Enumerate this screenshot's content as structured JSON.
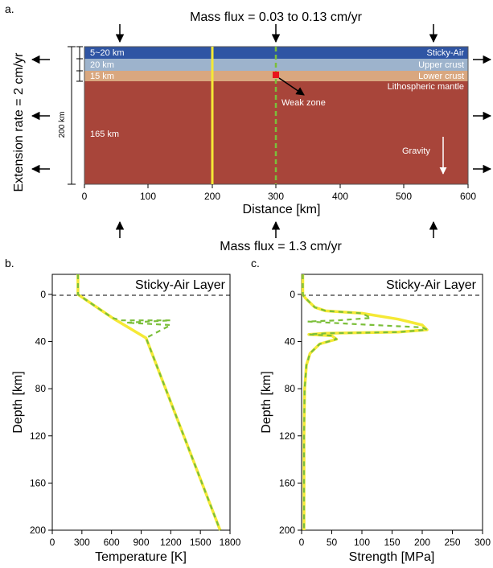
{
  "panel_a": {
    "label": "a.",
    "top_title": "Mass flux = 0.03 to 0.13 cm/yr",
    "bottom_title": "Mass flux = 1.3 cm/yr",
    "side_title": "Extension rate = 2 cm/yr",
    "height_label": "200 km",
    "x_axis_title": "Distance [km]",
    "x_ticks": [
      "0",
      "100",
      "200",
      "300",
      "400",
      "500",
      "600"
    ],
    "layers": [
      {
        "left_label": "5~20 km",
        "right_label": "Sticky-Air",
        "color": "#2f55a4"
      },
      {
        "left_label": "20 km",
        "right_label": "Upper crust",
        "color": "#9db3cc"
      },
      {
        "left_label": "15 km",
        "right_label": "Lower crust",
        "color": "#d9a77f"
      },
      {
        "left_label": "165 km",
        "right_label": "Lithospheric mantle",
        "color": "#a8453a"
      }
    ],
    "weak_zone_label": "Weak zone",
    "gravity_label": "Gravity",
    "profile_positions_km": [
      200,
      300
    ],
    "colors": {
      "solid_profile": "#f5e936",
      "dashed_profile": "#7bbf3a",
      "weak_zone": "#e8141c"
    }
  },
  "panel_b": {
    "label": "b.",
    "annotation": "Sticky-Air Layer",
    "x_axis_title": "Temperature [K]",
    "y_axis_title": "Depth [km]",
    "x_ticks": [
      "0",
      "300",
      "600",
      "900",
      "1200",
      "1500",
      "1800"
    ],
    "y_ticks": [
      "0",
      "40",
      "80",
      "120",
      "160",
      "200"
    ]
  },
  "panel_c": {
    "label": "c.",
    "annotation": "Sticky-Air Layer",
    "x_axis_title": "Strength [MPa]",
    "y_axis_title": "Depth [km]",
    "x_ticks": [
      "0",
      "50",
      "100",
      "150",
      "200",
      "250",
      "300"
    ],
    "y_ticks": [
      "0",
      "40",
      "80",
      "120",
      "160",
      "200"
    ]
  },
  "chart_data": [
    {
      "type": "line",
      "xlabel": "Temperature [K]",
      "ylabel": "Depth [km]",
      "xlim": [
        0,
        1800
      ],
      "ylim": [
        200,
        -17
      ],
      "series": [
        {
          "x": [
            260,
            260,
            610,
            950,
            1700
          ],
          "y": [
            -17,
            0,
            20,
            37,
            200
          ]
        },
        {
          "x": [
            260,
            260,
            610,
            700,
            1200,
            750,
            1200,
            950,
            1700
          ],
          "y": [
            -17,
            0,
            20,
            22,
            22,
            24,
            26,
            37,
            200
          ]
        }
      ]
    },
    {
      "type": "line",
      "xlabel": "Strength [MPa]",
      "ylabel": "Depth [km]",
      "xlim": [
        0,
        300
      ],
      "ylim": [
        200,
        -17
      ],
      "series": [
        {
          "x": [
            2,
            2,
            6,
            12,
            22,
            40,
            100,
            160,
            200,
            208,
            160,
            40,
            12,
            50,
            58,
            30,
            14,
            8,
            5,
            4,
            4,
            4
          ],
          "y": [
            -17,
            0,
            3,
            6,
            11,
            14,
            16,
            21,
            26,
            30,
            32,
            33,
            34,
            35,
            38,
            42,
            50,
            60,
            80,
            120,
            160,
            200
          ]
        },
        {
          "x": [
            2,
            2,
            6,
            12,
            22,
            40,
            100,
            115,
            60,
            10,
            80,
            160,
            200,
            208,
            160,
            40,
            12,
            50,
            58,
            30,
            14,
            8,
            5,
            4,
            4,
            4
          ],
          "y": [
            -17,
            0,
            3,
            6,
            11,
            14,
            16,
            20,
            22,
            23,
            25,
            27,
            28,
            30,
            32,
            33,
            34,
            35,
            38,
            42,
            50,
            60,
            80,
            120,
            160,
            200
          ]
        }
      ]
    }
  ]
}
